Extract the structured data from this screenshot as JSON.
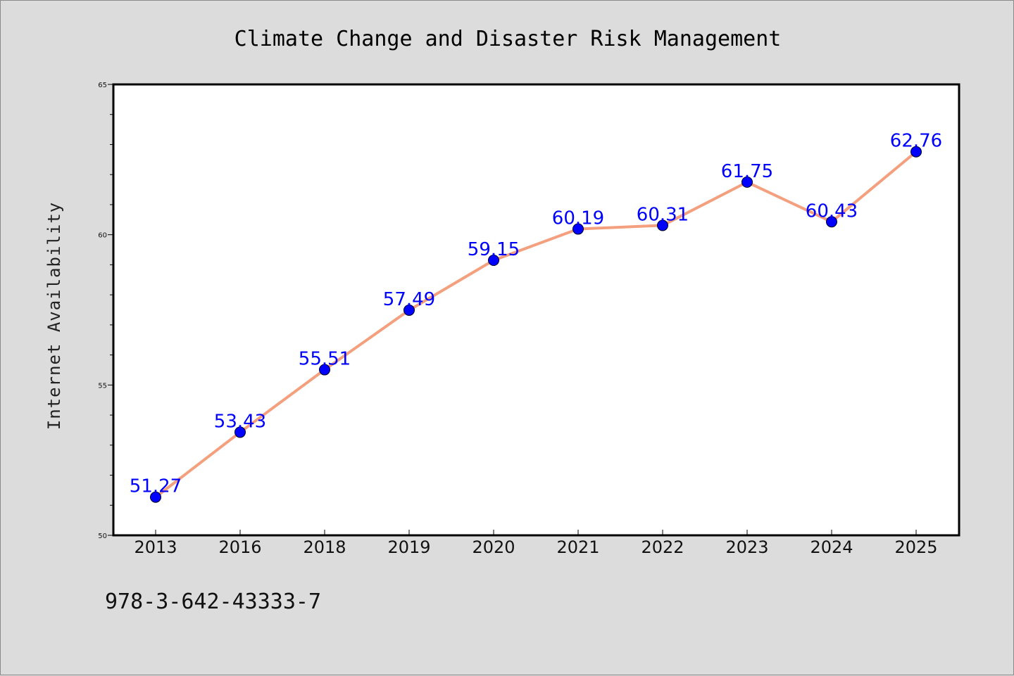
{
  "chart_data": {
    "type": "line",
    "title": "Climate Change and Disaster Risk Management",
    "xlabel": "",
    "ylabel": "Internet Availability",
    "categories": [
      "2013",
      "2016",
      "2018",
      "2019",
      "2020",
      "2021",
      "2022",
      "2023",
      "2024",
      "2025"
    ],
    "values": [
      51.27,
      53.43,
      55.51,
      57.49,
      59.15,
      60.19,
      60.31,
      61.75,
      60.43,
      62.76
    ],
    "data_labels": [
      "51.27",
      "53.43",
      "55.51",
      "57.49",
      "59.15",
      "60.19",
      "60.31",
      "61.75",
      "60.43",
      "62.76"
    ],
    "ylim": [
      50,
      65
    ],
    "yticks": [
      50,
      55,
      60,
      65
    ],
    "ytick_labels": [
      "50",
      "55",
      "60",
      "65"
    ],
    "y_minor_step": 1,
    "grid": false,
    "legend": "none",
    "colors": {
      "line": "#f4a07e",
      "marker": "#0000ff",
      "data_label": "#0000ff",
      "plot_background": "#ffffff",
      "figure_background": "#dcdcdc"
    }
  },
  "footnote": "978-3-642-43333-7"
}
